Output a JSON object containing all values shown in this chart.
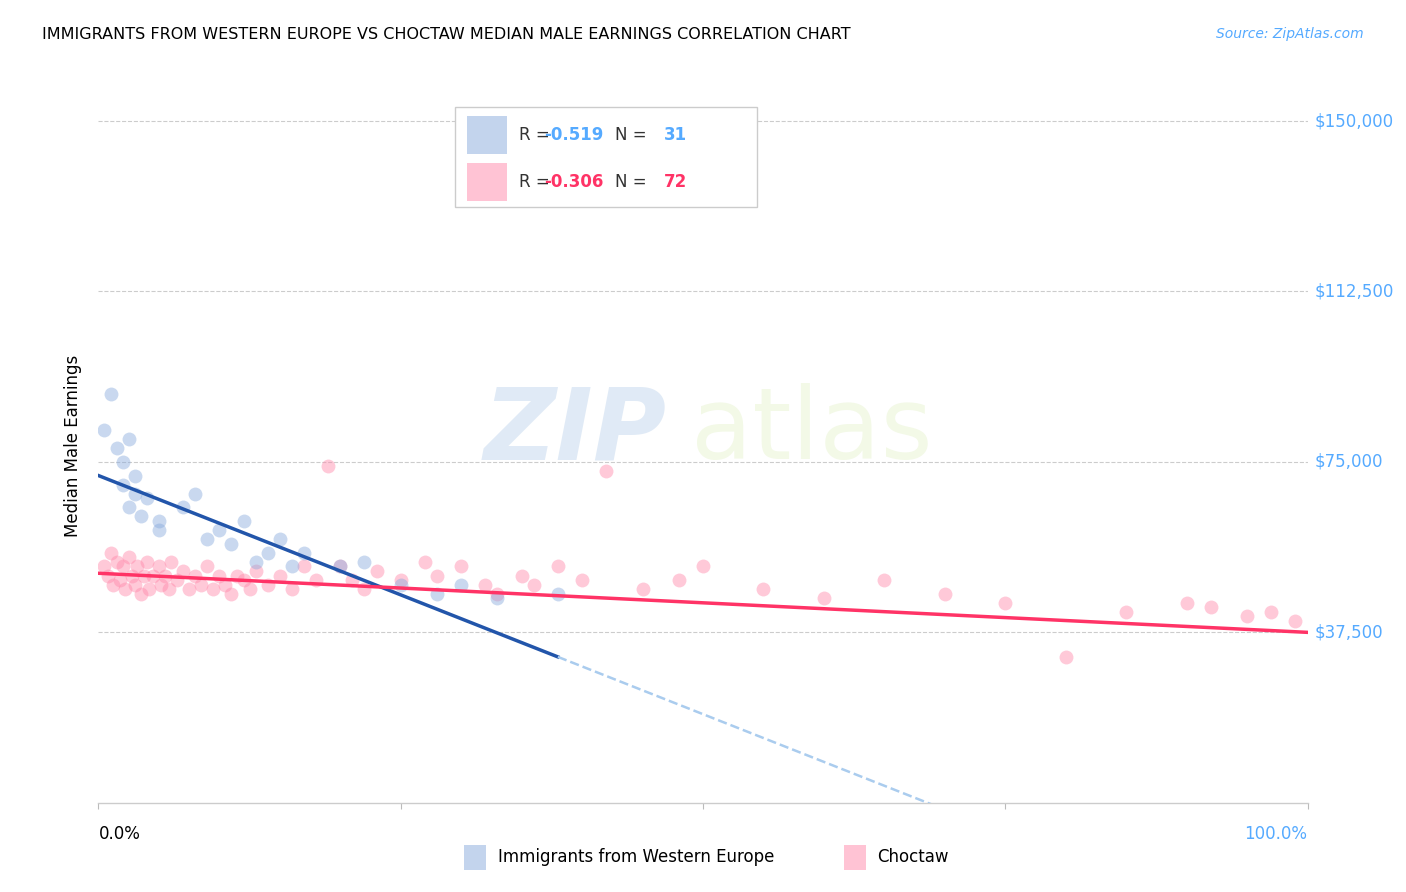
{
  "title": "IMMIGRANTS FROM WESTERN EUROPE VS CHOCTAW MEDIAN MALE EARNINGS CORRELATION CHART",
  "source": "Source: ZipAtlas.com",
  "ylabel": "Median Male Earnings",
  "ytick_labels": [
    "$37,500",
    "$75,000",
    "$112,500",
    "$150,000"
  ],
  "ytick_values": [
    37500,
    75000,
    112500,
    150000
  ],
  "ymin": 0,
  "ymax": 157000,
  "xmin": 0.0,
  "xmax": 1.0,
  "color_blue": "#88AADD",
  "color_pink": "#FF88AA",
  "color_blue_line": "#2255AA",
  "color_pink_line": "#FF3366",
  "color_blue_dashed": "#AACCEE",
  "watermark_zip": "ZIP",
  "watermark_atlas": "atlas",
  "blue_r": "-0.519",
  "blue_n": "31",
  "pink_r": "-0.306",
  "pink_n": "72",
  "blue_scatter_x": [
    0.005,
    0.01,
    0.015,
    0.02,
    0.02,
    0.025,
    0.025,
    0.03,
    0.03,
    0.035,
    0.04,
    0.05,
    0.05,
    0.07,
    0.08,
    0.09,
    0.1,
    0.11,
    0.12,
    0.13,
    0.14,
    0.15,
    0.16,
    0.17,
    0.2,
    0.22,
    0.25,
    0.28,
    0.3,
    0.33,
    0.38
  ],
  "blue_scatter_y": [
    82000,
    90000,
    78000,
    75000,
    70000,
    80000,
    65000,
    72000,
    68000,
    63000,
    67000,
    62000,
    60000,
    65000,
    68000,
    58000,
    60000,
    57000,
    62000,
    53000,
    55000,
    58000,
    52000,
    55000,
    52000,
    53000,
    48000,
    46000,
    48000,
    45000,
    46000
  ],
  "pink_scatter_x": [
    0.005,
    0.008,
    0.01,
    0.012,
    0.015,
    0.018,
    0.02,
    0.022,
    0.025,
    0.028,
    0.03,
    0.032,
    0.035,
    0.038,
    0.04,
    0.042,
    0.045,
    0.05,
    0.052,
    0.055,
    0.058,
    0.06,
    0.065,
    0.07,
    0.075,
    0.08,
    0.085,
    0.09,
    0.095,
    0.1,
    0.105,
    0.11,
    0.115,
    0.12,
    0.125,
    0.13,
    0.14,
    0.15,
    0.16,
    0.17,
    0.18,
    0.19,
    0.2,
    0.21,
    0.22,
    0.23,
    0.25,
    0.27,
    0.28,
    0.3,
    0.32,
    0.33,
    0.35,
    0.36,
    0.38,
    0.4,
    0.42,
    0.45,
    0.48,
    0.5,
    0.55,
    0.6,
    0.65,
    0.7,
    0.75,
    0.8,
    0.85,
    0.9,
    0.92,
    0.95,
    0.97,
    0.99
  ],
  "pink_scatter_y": [
    52000,
    50000,
    55000,
    48000,
    53000,
    49000,
    52000,
    47000,
    54000,
    50000,
    48000,
    52000,
    46000,
    50000,
    53000,
    47000,
    50000,
    52000,
    48000,
    50000,
    47000,
    53000,
    49000,
    51000,
    47000,
    50000,
    48000,
    52000,
    47000,
    50000,
    48000,
    46000,
    50000,
    49000,
    47000,
    51000,
    48000,
    50000,
    47000,
    52000,
    49000,
    74000,
    52000,
    49000,
    47000,
    51000,
    49000,
    53000,
    50000,
    52000,
    48000,
    46000,
    50000,
    48000,
    52000,
    49000,
    73000,
    47000,
    49000,
    52000,
    47000,
    45000,
    49000,
    46000,
    44000,
    32000,
    42000,
    44000,
    43000,
    41000,
    42000,
    40000
  ]
}
